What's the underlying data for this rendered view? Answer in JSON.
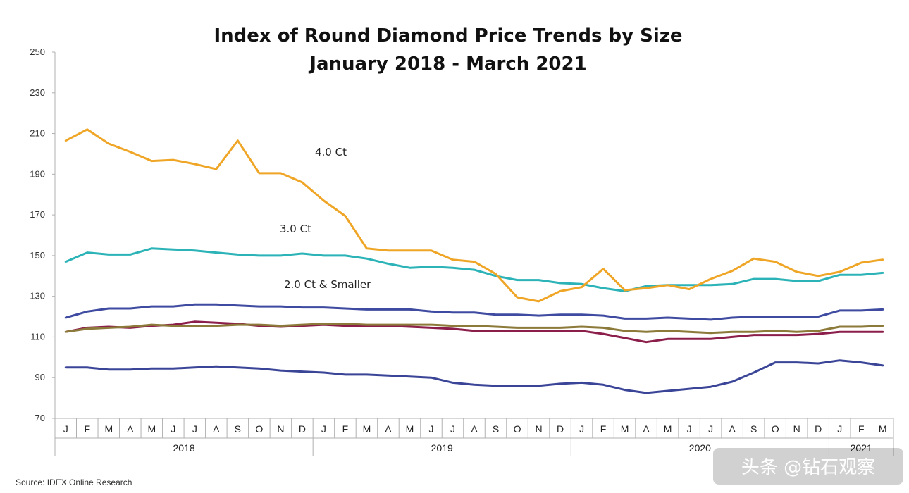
{
  "chart_data": {
    "type": "line",
    "title": "Index of Round Diamond Price Trends by Size",
    "subtitle": "January 2018 - March 2021",
    "ylim": [
      70,
      250
    ],
    "yticks": [
      70,
      90,
      110,
      130,
      150,
      170,
      190,
      210,
      230,
      250
    ],
    "months": [
      "J",
      "F",
      "M",
      "A",
      "M",
      "J",
      "J",
      "A",
      "S",
      "O",
      "N",
      "D",
      "J",
      "F",
      "M",
      "A",
      "M",
      "J",
      "J",
      "A",
      "S",
      "O",
      "N",
      "D",
      "J",
      "F",
      "M",
      "A",
      "M",
      "J",
      "J",
      "A",
      "S",
      "O",
      "N",
      "D",
      "J",
      "F",
      "M"
    ],
    "years": [
      {
        "label": "2018",
        "start": 0,
        "end": 11
      },
      {
        "label": "2019",
        "start": 12,
        "end": 23
      },
      {
        "label": "2020",
        "start": 24,
        "end": 35
      },
      {
        "label": "2021",
        "start": 36,
        "end": 38
      }
    ],
    "grid": false,
    "legend": "inline labels",
    "series": [
      {
        "name": "4.0 Ct",
        "color": "#EFA526",
        "values": [
          206.5,
          212,
          205,
          201,
          196.5,
          197,
          195,
          192.5,
          206.5,
          190.5,
          190.5,
          186,
          177,
          169.5,
          153.5,
          152.5,
          152.5,
          152.5,
          148,
          147,
          141,
          129.5,
          127.5,
          132.5,
          134.5,
          143.5,
          133,
          134,
          135.5,
          133.5,
          138.5,
          142.5,
          148.5,
          147,
          142,
          140,
          142,
          146.5,
          148
        ]
      },
      {
        "name": "3.0 Ct",
        "color": "#2BB3B7",
        "values": [
          147,
          151.5,
          150.5,
          150.5,
          153.5,
          153,
          152.5,
          151.5,
          150.5,
          150,
          150,
          151,
          150,
          150,
          148.5,
          146,
          144,
          144.5,
          144,
          143,
          140,
          138,
          138,
          136.5,
          136,
          134,
          132.5,
          135,
          135.5,
          135.5,
          135.5,
          136,
          138.5,
          138.5,
          137.5,
          137.5,
          140.5,
          140.5,
          141.5
        ]
      },
      {
        "name": "2.0 Ct & Smaller",
        "color": "#3E4BA0",
        "values": [
          119.5,
          122.5,
          124,
          124,
          125,
          125,
          126,
          126,
          125.5,
          125,
          125,
          124.5,
          124.5,
          124,
          123.5,
          123.5,
          123.5,
          122.5,
          122,
          122,
          121,
          121,
          120.5,
          121,
          121,
          120.5,
          119,
          119,
          119.5,
          119,
          118.5,
          119.5,
          120,
          120,
          120,
          120,
          123,
          123,
          123.5
        ]
      },
      {
        "color": "#8C7A3A",
        "values": [
          112.5,
          114,
          114.5,
          115,
          116,
          115.5,
          115.5,
          115.5,
          116,
          116,
          115.5,
          116,
          116.5,
          116.5,
          116,
          116,
          116,
          116,
          115.5,
          115.5,
          115,
          114.5,
          114.5,
          114.5,
          115,
          114.5,
          113,
          112.5,
          113,
          112.5,
          112,
          112.5,
          112.5,
          113,
          112.5,
          113,
          115,
          115,
          115.5
        ]
      },
      {
        "color": "#8B1E4A",
        "values": [
          112.5,
          114.5,
          115,
          114.5,
          115.5,
          116,
          117.5,
          117,
          116.5,
          115.5,
          115,
          115.5,
          116,
          115.5,
          115.5,
          115.5,
          115,
          114.5,
          114,
          113,
          113,
          113,
          113,
          113,
          113,
          111.5,
          109.5,
          107.5,
          109,
          109,
          109,
          110,
          111,
          111,
          111,
          111.5,
          112.5,
          112.5,
          112.5
        ]
      },
      {
        "color": "#3B4598",
        "values": [
          95,
          95,
          94,
          94,
          94.5,
          94.5,
          95,
          95.5,
          95,
          94.5,
          93.5,
          93,
          92.5,
          91.5,
          91.5,
          91,
          90.5,
          90,
          87.5,
          86.5,
          86,
          86,
          86,
          87,
          87.5,
          86.5,
          84,
          82.5,
          83.5,
          84.5,
          85.5,
          88,
          92.5,
          97.5,
          97.5,
          97,
          98.5,
          97.5,
          96
        ]
      }
    ]
  },
  "source": "Source: IDEX Online Research",
  "watermark": "头条 @钻石观察"
}
